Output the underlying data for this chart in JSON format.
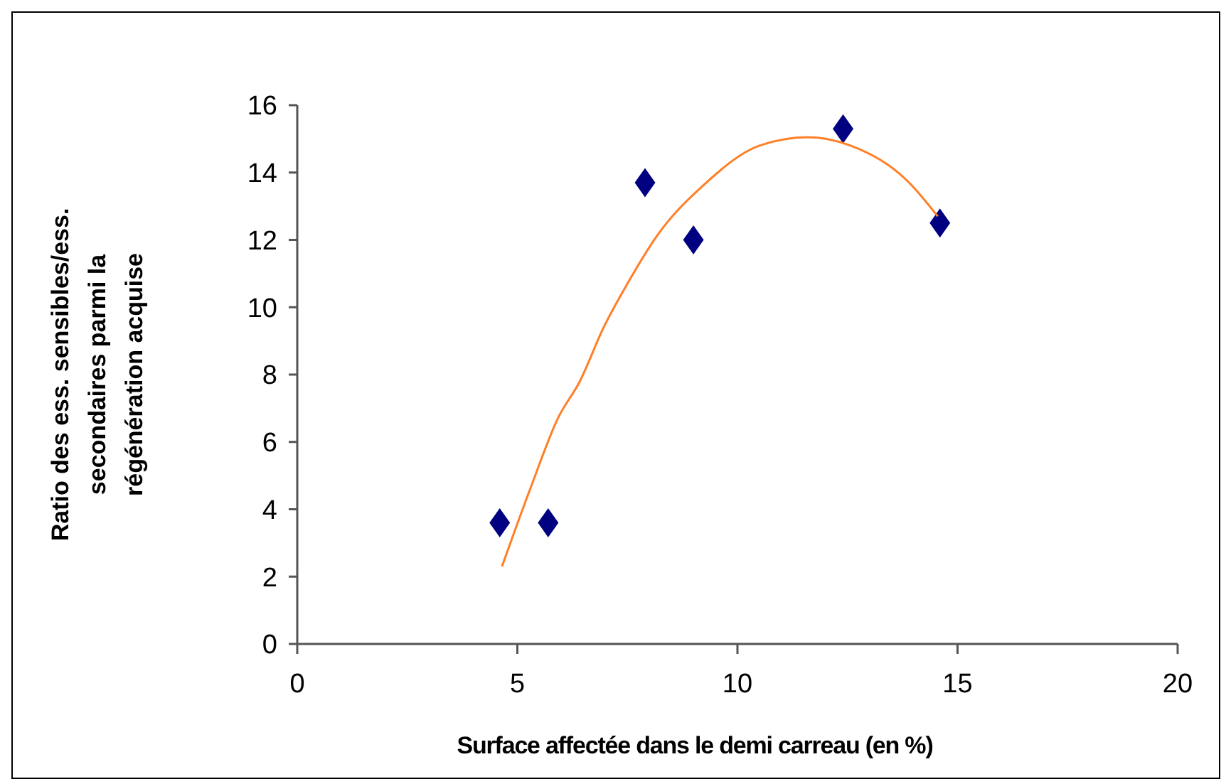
{
  "chart_data": {
    "type": "scatter",
    "xlabel": "Surface affectée dans le demi carreau (en %)",
    "ylabel": "Ratio des ess. sensibles/ess. secondaires parmi la régénération acquise",
    "xlim": [
      0,
      20
    ],
    "xticks": [
      0,
      5,
      10,
      15,
      20
    ],
    "ylim": [
      0,
      16
    ],
    "yticks": [
      0,
      2,
      4,
      6,
      8,
      10,
      12,
      14,
      16
    ],
    "grid": false,
    "marker": "diamond",
    "series": [
      {
        "color": "#000080",
        "x": [
          4.6,
          5.7,
          7.9,
          9.0,
          12.4,
          14.6
        ],
        "values": [
          3.6,
          3.6,
          13.7,
          12.0,
          15.3,
          12.5
        ]
      },
      {
        "type": "line",
        "color": "#ff7f27",
        "marker": "none",
        "x": [
          4.65,
          5.32,
          5.92,
          6.42,
          6.96,
          7.5,
          8.16,
          9.25,
          10.5,
          11.6,
          12.57,
          13.9,
          14.55
        ],
        "values": [
          2.3,
          4.7,
          6.7,
          7.8,
          9.4,
          10.7,
          12.1,
          13.65,
          14.8,
          15.05,
          14.8,
          13.7,
          12.7
        ]
      }
    ]
  }
}
